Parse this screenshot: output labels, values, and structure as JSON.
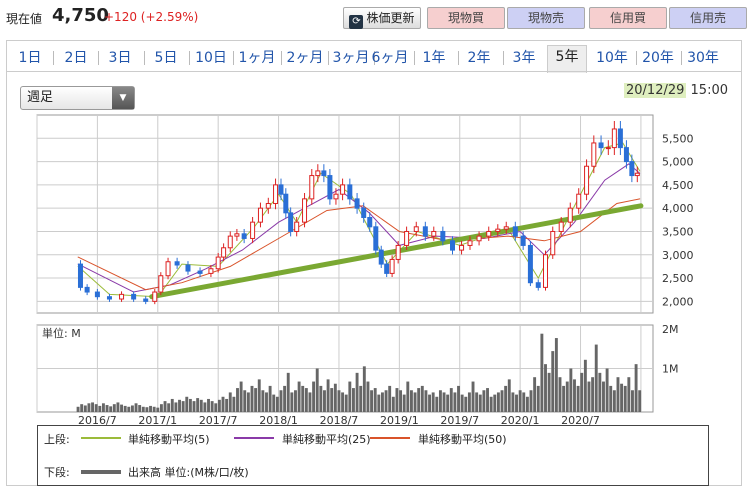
{
  "header": {
    "price_label": "現在値",
    "price": "4,750",
    "change": "+120 (+2.59%)",
    "buttons": {
      "update": "株価更新",
      "spot_buy": "現物買",
      "spot_sell": "現物売",
      "margin_buy": "信用買",
      "margin_sell": "信用売"
    }
  },
  "tabs": [
    "1日",
    "2日",
    "3日",
    "5日",
    "10日",
    "1ヶ月",
    "2ヶ月",
    "3ヶ月",
    "6ヶ月",
    "1年",
    "2年",
    "3年",
    "5年",
    "10年",
    "20年",
    "30年"
  ],
  "active_tab": "5年",
  "period_select": "週足",
  "date_time": {
    "date": "20/12/29",
    "time": "15:00"
  },
  "chart_data": {
    "type": "line",
    "price_axis": {
      "ticks": [
        "5,500",
        "5,000",
        "4,500",
        "4,000",
        "3,500",
        "3,000",
        "2,500",
        "2,000"
      ],
      "ylim": [
        1750,
        6000
      ]
    },
    "volume_axis": {
      "label": "単位: M",
      "ticks": [
        "2M",
        "1M"
      ],
      "ylim": [
        0,
        2
      ]
    },
    "x_ticks": [
      "2016/7",
      "2017/1",
      "2017/7",
      "2018/1",
      "2018/7",
      "2019/1",
      "2019/7",
      "2020/1",
      "2020/7"
    ],
    "x_range": [
      2016.0,
      2021.1
    ],
    "price_series": [
      [
        2016.34,
        2800
      ],
      [
        2016.38,
        2300
      ],
      [
        2016.45,
        2200
      ],
      [
        2016.55,
        2100
      ],
      [
        2016.65,
        2050
      ],
      [
        2016.75,
        2150
      ],
      [
        2016.85,
        2050
      ],
      [
        2016.95,
        2000
      ],
      [
        2017.0,
        2200
      ],
      [
        2017.05,
        2550
      ],
      [
        2017.12,
        2850
      ],
      [
        2017.2,
        2780
      ],
      [
        2017.3,
        2650
      ],
      [
        2017.4,
        2600
      ],
      [
        2017.48,
        2700
      ],
      [
        2017.52,
        2950
      ],
      [
        2017.57,
        3150
      ],
      [
        2017.63,
        3400
      ],
      [
        2017.68,
        3450
      ],
      [
        2017.75,
        3350
      ],
      [
        2017.82,
        3700
      ],
      [
        2017.88,
        4000
      ],
      [
        2017.95,
        4100
      ],
      [
        2018.0,
        4500
      ],
      [
        2018.04,
        4300
      ],
      [
        2018.08,
        3900
      ],
      [
        2018.12,
        3500
      ],
      [
        2018.18,
        3700
      ],
      [
        2018.25,
        4200
      ],
      [
        2018.3,
        4700
      ],
      [
        2018.35,
        4800
      ],
      [
        2018.4,
        4700
      ],
      [
        2018.45,
        4200
      ],
      [
        2018.5,
        4300
      ],
      [
        2018.56,
        4500
      ],
      [
        2018.62,
        4200
      ],
      [
        2018.68,
        4000
      ],
      [
        2018.73,
        3800
      ],
      [
        2018.78,
        3600
      ],
      [
        2018.83,
        3100
      ],
      [
        2018.87,
        2800
      ],
      [
        2018.92,
        2600
      ],
      [
        2018.96,
        2900
      ],
      [
        2019.02,
        3200
      ],
      [
        2019.1,
        3500
      ],
      [
        2019.18,
        3600
      ],
      [
        2019.25,
        3400
      ],
      [
        2019.32,
        3500
      ],
      [
        2019.4,
        3300
      ],
      [
        2019.48,
        3100
      ],
      [
        2019.55,
        3200
      ],
      [
        2019.62,
        3300
      ],
      [
        2019.7,
        3400
      ],
      [
        2019.78,
        3500
      ],
      [
        2019.85,
        3550
      ],
      [
        2019.92,
        3600
      ],
      [
        2020.0,
        3400
      ],
      [
        2020.05,
        3200
      ],
      [
        2020.12,
        2400
      ],
      [
        2020.18,
        2300
      ],
      [
        2020.24,
        3000
      ],
      [
        2020.3,
        3500
      ],
      [
        2020.38,
        3700
      ],
      [
        2020.45,
        4000
      ],
      [
        2020.52,
        4300
      ],
      [
        2020.58,
        4900
      ],
      [
        2020.64,
        5400
      ],
      [
        2020.7,
        5300
      ],
      [
        2020.76,
        5300
      ],
      [
        2020.8,
        5700
      ],
      [
        2020.86,
        5300
      ],
      [
        2020.9,
        5000
      ],
      [
        2020.95,
        4700
      ],
      [
        2020.99,
        4750
      ]
    ],
    "ma_series": [
      {
        "name": "単純移動平均(5)",
        "color": "#9bbb3a",
        "width": 1,
        "points": [
          [
            2016.34,
            2750
          ],
          [
            2016.6,
            2150
          ],
          [
            2017.0,
            2100
          ],
          [
            2017.2,
            2800
          ],
          [
            2017.5,
            2750
          ],
          [
            2017.8,
            3600
          ],
          [
            2018.0,
            4300
          ],
          [
            2018.15,
            3700
          ],
          [
            2018.35,
            4750
          ],
          [
            2018.6,
            4300
          ],
          [
            2018.9,
            2800
          ],
          [
            2019.15,
            3500
          ],
          [
            2019.5,
            3200
          ],
          [
            2019.9,
            3550
          ],
          [
            2020.15,
            2500
          ],
          [
            2020.4,
            3800
          ],
          [
            2020.7,
            5300
          ],
          [
            2020.85,
            5400
          ],
          [
            2020.99,
            4800
          ]
        ]
      },
      {
        "name": "単純移動平均(25)",
        "color": "#8a3aa8",
        "width": 1,
        "points": [
          [
            2016.34,
            2800
          ],
          [
            2016.8,
            2200
          ],
          [
            2017.1,
            2350
          ],
          [
            2017.4,
            2700
          ],
          [
            2017.7,
            3100
          ],
          [
            2018.0,
            3700
          ],
          [
            2018.25,
            4050
          ],
          [
            2018.5,
            4400
          ],
          [
            2018.75,
            3900
          ],
          [
            2019.0,
            3200
          ],
          [
            2019.3,
            3400
          ],
          [
            2019.7,
            3350
          ],
          [
            2020.0,
            3500
          ],
          [
            2020.2,
            3000
          ],
          [
            2020.45,
            3700
          ],
          [
            2020.7,
            4600
          ],
          [
            2020.9,
            4950
          ],
          [
            2020.99,
            4750
          ]
        ]
      },
      {
        "name": "単純移動平均(50)",
        "color": "#d9532a",
        "width": 1,
        "points": [
          [
            2016.34,
            2950
          ],
          [
            2016.9,
            2250
          ],
          [
            2017.2,
            2400
          ],
          [
            2017.6,
            2750
          ],
          [
            2018.0,
            3350
          ],
          [
            2018.4,
            3950
          ],
          [
            2018.7,
            4050
          ],
          [
            2019.0,
            3500
          ],
          [
            2019.4,
            3300
          ],
          [
            2019.9,
            3400
          ],
          [
            2020.2,
            3300
          ],
          [
            2020.5,
            3500
          ],
          [
            2020.8,
            4100
          ],
          [
            2020.99,
            4200
          ]
        ]
      },
      {
        "name": "trend",
        "color": "#7aa832",
        "width": 5,
        "points": [
          [
            2016.95,
            2100
          ],
          [
            2021.0,
            4050
          ]
        ]
      }
    ],
    "volume": [
      0.12,
      0.18,
      0.15,
      0.2,
      0.22,
      0.18,
      0.14,
      0.2,
      0.16,
      0.13,
      0.18,
      0.22,
      0.17,
      0.14,
      0.12,
      0.15,
      0.2,
      0.16,
      0.12,
      0.11,
      0.14,
      0.12,
      0.1,
      0.18,
      0.25,
      0.2,
      0.3,
      0.22,
      0.28,
      0.25,
      0.35,
      0.3,
      0.25,
      0.32,
      0.28,
      0.22,
      0.3,
      0.25,
      0.2,
      0.28,
      0.35,
      0.3,
      0.45,
      0.35,
      0.55,
      0.7,
      0.5,
      0.45,
      0.6,
      0.55,
      0.75,
      0.5,
      0.45,
      0.6,
      0.4,
      0.35,
      0.5,
      0.6,
      0.9,
      0.45,
      0.5,
      0.7,
      0.6,
      0.55,
      0.45,
      0.7,
      1.0,
      0.6,
      0.5,
      0.75,
      0.55,
      0.65,
      0.5,
      0.45,
      0.4,
      0.7,
      0.55,
      0.9,
      0.6,
      1.05,
      0.7,
      0.5,
      0.55,
      0.4,
      0.45,
      0.5,
      0.6,
      0.35,
      0.55,
      0.5,
      0.4,
      0.7,
      0.5,
      0.45,
      0.55,
      0.6,
      0.5,
      0.4,
      0.45,
      0.35,
      0.5,
      0.45,
      0.4,
      0.55,
      0.45,
      0.6,
      0.4,
      0.35,
      0.45,
      0.7,
      0.45,
      0.4,
      0.5,
      0.55,
      0.35,
      0.4,
      0.45,
      0.5,
      0.6,
      0.75,
      0.45,
      0.4,
      0.5,
      0.45,
      0.35,
      0.5,
      0.8,
      0.6,
      1.8,
      1.1,
      0.9,
      1.4,
      1.7,
      0.8,
      0.6,
      0.7,
      1.0,
      0.75,
      0.6,
      0.9,
      1.2,
      0.7,
      0.8,
      1.55,
      0.9,
      0.7,
      1.0,
      0.6,
      0.5,
      0.8,
      0.65,
      0.6,
      0.8,
      0.5,
      1.1,
      0.5
    ]
  },
  "legend": {
    "upper_label": "上段:",
    "lower_label": "下段:",
    "ma5": "単純移動平均(5)",
    "ma25": "単純移動平均(25)",
    "ma50": "単純移動平均(50)",
    "volume": "出来高 単位:(M株/口/枚)",
    "colors": {
      "ma5": "#9bbb3a",
      "ma25": "#8a3aa8",
      "ma50": "#d9532a",
      "volume": "#666666"
    }
  }
}
